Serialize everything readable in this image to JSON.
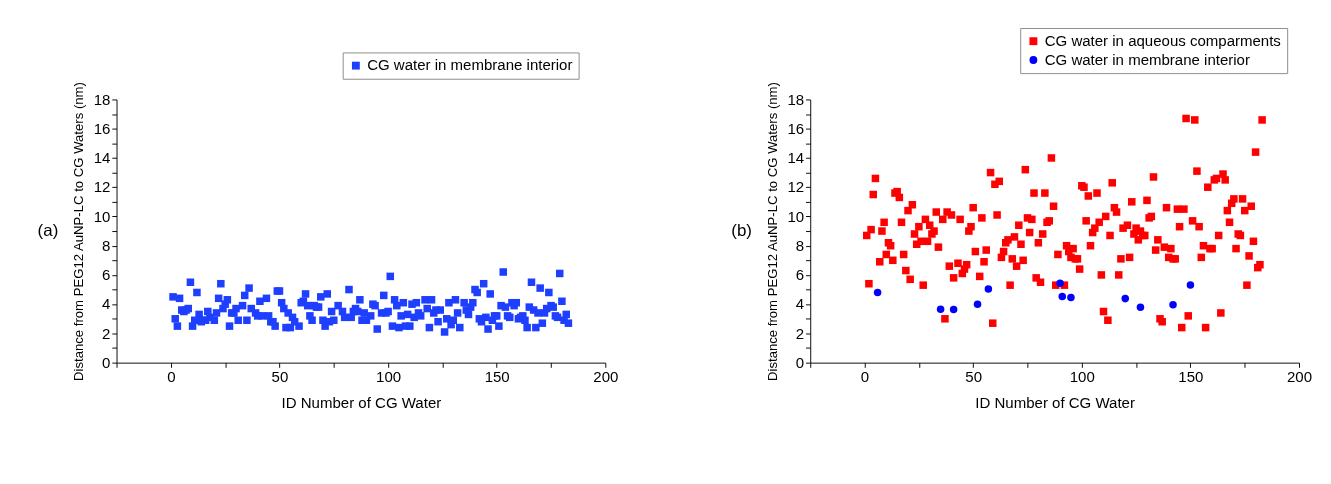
{
  "chart_data": [
    {
      "type": "scatter",
      "xlabel": "ID Number of CG Water",
      "ylabel": "Distance from  PEG12 AuNP-LC to CG Waters (nm)",
      "annotations": [
        "(a)"
      ],
      "legend": "top right",
      "grid": false,
      "xlim": [
        -25,
        200
      ],
      "xticks": [
        {
          "value": -25,
          "label": null
        },
        0,
        {
          "value": 25,
          "label": null
        },
        50,
        {
          "value": 75,
          "label": null
        },
        100,
        {
          "value": 125,
          "label": null
        },
        150,
        {
          "value": 175,
          "label": null
        },
        200
      ],
      "ylim": [
        0,
        18
      ],
      "yticks": [
        0,
        {
          "value": 1,
          "label": null
        },
        2,
        {
          "value": 3,
          "label": null
        },
        4,
        {
          "value": 5,
          "label": null
        },
        6,
        {
          "value": 7,
          "label": null
        },
        8,
        {
          "value": 9,
          "label": null
        },
        10,
        {
          "value": 11,
          "label": null
        },
        12,
        {
          "value": 13,
          "label": null
        },
        14,
        {
          "value": 15,
          "label": null
        },
        16,
        {
          "value": 17,
          "label": null
        },
        18
      ],
      "series": [
        {
          "name": "CG water in membrane interior",
          "color": "#1f3fff",
          "marker": "square",
          "x": [
            1,
            2,
            3,
            4,
            5,
            6,
            7,
            8,
            9,
            10,
            11,
            12,
            13,
            14,
            15,
            16,
            17,
            18,
            20,
            21,
            22,
            23,
            24,
            25,
            26,
            27,
            28,
            29,
            30,
            31,
            33,
            34,
            35,
            36,
            37,
            39,
            40,
            41,
            42,
            44,
            45,
            46,
            47,
            48,
            49,
            50,
            51,
            52,
            53,
            54,
            55,
            56,
            57,
            59,
            60,
            61,
            62,
            63,
            64,
            65,
            66,
            67,
            68,
            69,
            70,
            71,
            72,
            73,
            74,
            75,
            77,
            79,
            80,
            82,
            83,
            84,
            85,
            86,
            87,
            88,
            89,
            90,
            92,
            93,
            94,
            95,
            97,
            98,
            99,
            100,
            101,
            102,
            103,
            104,
            105,
            106,
            107,
            108,
            109,
            110,
            111,
            112,
            113,
            114,
            115,
            117,
            118,
            119,
            120,
            121,
            122,
            123,
            124,
            126,
            127,
            128,
            129,
            130,
            131,
            132,
            133,
            135,
            136,
            137,
            138,
            139,
            140,
            141,
            142,
            143,
            144,
            145,
            146,
            147,
            148,
            149,
            150,
            151,
            152,
            153,
            154,
            155,
            156,
            157,
            158,
            159,
            160,
            161,
            162,
            163,
            164,
            165,
            166,
            167,
            168,
            169,
            170,
            171,
            172,
            173,
            174,
            175,
            176,
            177,
            178,
            179,
            180,
            181,
            182,
            183
          ],
          "values": [
            4.5,
            3.0,
            2.5,
            4.4,
            3.6,
            3.5,
            3.6,
            3.7,
            5.5,
            2.5,
            2.9,
            4.8,
            3.3,
            2.8,
            2.9,
            2.9,
            3.5,
            3.1,
            2.9,
            3.4,
            4.4,
            5.4,
            3.7,
            4.0,
            4.3,
            2.5,
            3.4,
            3.4,
            3.7,
            2.9,
            3.9,
            4.6,
            2.9,
            5.1,
            3.7,
            3.4,
            3.2,
            4.2,
            3.2,
            4.4,
            3.2,
            2.8,
            2.8,
            2.5,
            4.9,
            4.9,
            4.1,
            3.7,
            2.4,
            3.4,
            2.4,
            3.1,
            2.8,
            2.5,
            4.1,
            4.2,
            4.7,
            3.9,
            3.2,
            2.9,
            3.9,
            3.8,
            3.8,
            4.5,
            2.9,
            2.5,
            4.7,
            2.8,
            3.5,
            2.9,
            3.9,
            3.5,
            3.1,
            5.0,
            3.1,
            3.5,
            3.7,
            3.5,
            4.3,
            2.9,
            3.4,
            2.9,
            3.2,
            4.0,
            3.9,
            2.3,
            3.4,
            4.6,
            3.4,
            3.5,
            5.9,
            2.5,
            4.3,
            3.9,
            2.4,
            3.2,
            4.1,
            2.5,
            3.3,
            2.5,
            4.0,
            3.1,
            4.1,
            3.4,
            3.2,
            4.3,
            3.7,
            2.4,
            4.3,
            3.4,
            3.6,
            2.8,
            3.6,
            2.1,
            3.0,
            4.1,
            2.6,
            2.9,
            4.3,
            3.4,
            2.4,
            4.1,
            3.6,
            3.3,
            3.8,
            4.1,
            5.0,
            4.8,
            3.0,
            2.8,
            5.4,
            3.1,
            2.3,
            4.7,
            2.9,
            3.2,
            3.2,
            2.5,
            3.9,
            6.2,
            3.8,
            3.2,
            3.1,
            4.1,
            3.9,
            4.1,
            3.0,
            3.1,
            3.2,
            2.9,
            2.4,
            3.8,
            5.5,
            3.6,
            2.4,
            3.4,
            5.1,
            2.7,
            3.4,
            3.7,
            4.8,
            3.9,
            3.8,
            3.2,
            3.1,
            6.1,
            4.2,
            2.9,
            3.3,
            2.7
          ]
        }
      ]
    },
    {
      "type": "scatter",
      "xlabel": "ID Number of CG Water",
      "ylabel": "Distance from  PEG12 AuNP-LC to CG Waters (nm)",
      "annotations": [
        "(b)"
      ],
      "legend": "top right",
      "grid": false,
      "xlim": [
        -25,
        200
      ],
      "xticks": [
        {
          "value": -25,
          "label": null
        },
        0,
        {
          "value": 25,
          "label": null
        },
        50,
        {
          "value": 75,
          "label": null
        },
        100,
        {
          "value": 125,
          "label": null
        },
        150,
        {
          "value": 175,
          "label": null
        },
        200
      ],
      "ylim": [
        0,
        18
      ],
      "yticks": [
        0,
        {
          "value": 1,
          "label": null
        },
        2,
        {
          "value": 3,
          "label": null
        },
        4,
        {
          "value": 5,
          "label": null
        },
        6,
        {
          "value": 7,
          "label": null
        },
        8,
        {
          "value": 9,
          "label": null
        },
        10,
        {
          "value": 11,
          "label": null
        },
        12,
        {
          "value": 13,
          "label": null
        },
        14,
        {
          "value": 15,
          "label": null
        },
        16,
        {
          "value": 17,
          "label": null
        },
        18
      ],
      "series": [
        {
          "name": "CG water in aqueous comparments",
          "color": "#ff0000",
          "marker": "square",
          "x": [
            1,
            2,
            3,
            4,
            5,
            7,
            8,
            9,
            10,
            11,
            12,
            13,
            14,
            15,
            16,
            17,
            18,
            19,
            20,
            21,
            22,
            23,
            24,
            25,
            26,
            27,
            28,
            29,
            30,
            31,
            32,
            33,
            34,
            36,
            37,
            38,
            39,
            40,
            41,
            43,
            44,
            45,
            46,
            47,
            48,
            49,
            50,
            51,
            53,
            54,
            55,
            56,
            58,
            59,
            60,
            61,
            62,
            63,
            64,
            65,
            66,
            67,
            68,
            69,
            70,
            71,
            72,
            73,
            74,
            75,
            76,
            77,
            78,
            79,
            80,
            81,
            82,
            83,
            84,
            85,
            86,
            87,
            88,
            89,
            92,
            93,
            94,
            95,
            96,
            97,
            98,
            99,
            100,
            101,
            102,
            103,
            104,
            105,
            106,
            107,
            108,
            109,
            110,
            111,
            112,
            113,
            114,
            115,
            116,
            117,
            118,
            119,
            121,
            122,
            123,
            124,
            125,
            126,
            127,
            128,
            129,
            130,
            131,
            132,
            133,
            134,
            135,
            136,
            137,
            138,
            139,
            140,
            141,
            142,
            143,
            144,
            145,
            146,
            147,
            148,
            149,
            151,
            152,
            153,
            154,
            155,
            156,
            157,
            158,
            159,
            160,
            161,
            162,
            163,
            164,
            165,
            166,
            167,
            168,
            169,
            170,
            171,
            172,
            173,
            174,
            175,
            176,
            177,
            178,
            179,
            180,
            181,
            182,
            183
          ],
          "values": [
            8.7,
            5.4,
            9.1,
            11.5,
            12.6,
            6.9,
            9.0,
            9.6,
            7.4,
            8.2,
            8.0,
            7.0,
            11.6,
            11.7,
            11.3,
            9.6,
            7.4,
            6.3,
            10.4,
            5.7,
            10.8,
            8.8,
            8.1,
            9.3,
            8.3,
            5.3,
            9.8,
            8.3,
            9.4,
            8.8,
            9.0,
            10.3,
            7.9,
            9.8,
            3.0,
            10.3,
            6.6,
            10.1,
            5.8,
            6.8,
            9.8,
            6.1,
            6.4,
            6.7,
            9.0,
            9.3,
            10.6,
            7.6,
            5.9,
            9.9,
            6.9,
            7.7,
            13.0,
            2.7,
            12.2,
            10.1,
            12.4,
            7.2,
            7.6,
            8.2,
            8.4,
            5.3,
            7.1,
            8.6,
            6.6,
            9.4,
            8.1,
            7.0,
            13.2,
            9.9,
            8.9,
            9.8,
            11.6,
            5.8,
            8.2,
            5.5,
            8.8,
            11.6,
            9.6,
            9.7,
            14.0,
            10.7,
            5.3,
            7.4,
            5.3,
            8.0,
            7.6,
            7.2,
            7.8,
            7.1,
            7.1,
            6.4,
            12.1,
            12.0,
            9.7,
            11.4,
            8.0,
            8.9,
            9.2,
            11.6,
            9.6,
            6.0,
            3.5,
            10.0,
            2.9,
            8.7,
            12.3,
            10.6,
            10.3,
            6.0,
            7.1,
            9.2,
            9.4,
            7.2,
            11.0,
            8.8,
            9.2,
            8.4,
            9.0,
            8.7,
            8.7,
            11.1,
            9.9,
            10.0,
            12.7,
            7.7,
            8.4,
            3.0,
            2.8,
            7.9,
            10.6,
            7.2,
            7.8,
            7.1,
            7.1,
            10.5,
            9.3,
            2.4,
            10.5,
            16.7,
            3.2,
            9.7,
            16.6,
            13.1,
            9.3,
            7.2,
            8.0,
            2.4,
            12.0,
            7.8,
            7.8,
            12.5,
            12.6,
            8.7,
            3.4,
            12.9,
            12.5,
            10.4,
            9.6,
            10.9,
            11.2,
            7.8,
            8.8,
            8.7,
            11.2,
            10.4,
            5.3,
            7.3,
            10.7,
            8.3,
            14.4,
            6.5,
            6.7,
            16.6
          ]
        },
        {
          "name": "CG water in membrane interior",
          "color": "#0000ff",
          "marker": "circle",
          "x": [
            6,
            35,
            41,
            52,
            57,
            90,
            91,
            95,
            120,
            127,
            142,
            150
          ],
          "values": [
            4.8,
            3.66,
            3.64,
            4.0,
            5.04,
            5.43,
            4.52,
            4.45,
            4.38,
            3.79,
            3.96,
            5.31
          ]
        }
      ]
    }
  ]
}
